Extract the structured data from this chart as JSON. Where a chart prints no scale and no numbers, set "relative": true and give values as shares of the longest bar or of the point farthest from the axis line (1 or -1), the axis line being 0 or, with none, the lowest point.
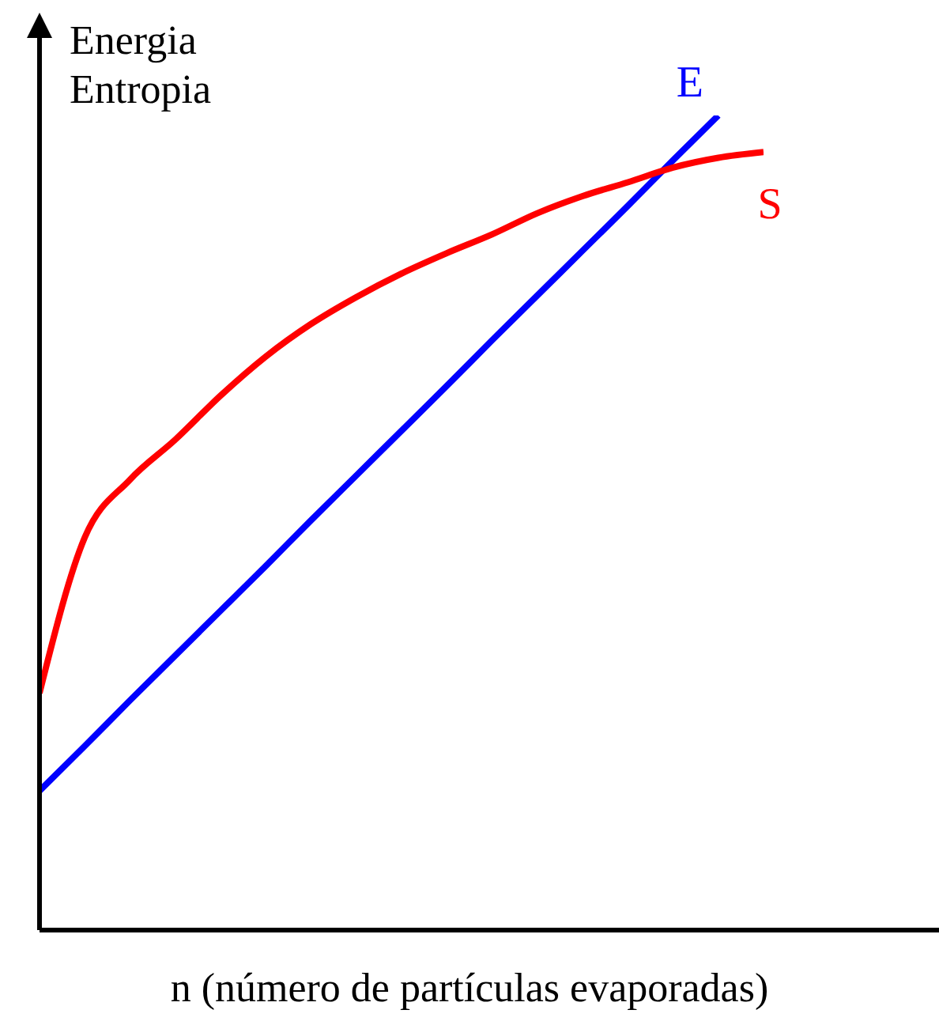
{
  "chart_data": {
    "type": "line",
    "relative": true,
    "xlabel": "n (número de partículas evaporadas)",
    "ylabel": "Energia\nEntropia",
    "categories": [
      null,
      null,
      null,
      null,
      null,
      null,
      null,
      null,
      null,
      null,
      null,
      null,
      null,
      null,
      null,
      null,
      null
    ],
    "series": [
      {
        "name": "E",
        "color": "#0000ff",
        "values": [
          0.171,
          0.226,
          0.282,
          0.337,
          0.392,
          0.447,
          0.503,
          0.558,
          0.613,
          0.668,
          0.724,
          0.779,
          0.834,
          0.889,
          0.945,
          1.0,
          null
        ]
      },
      {
        "name": "S",
        "color": "#ff0000",
        "values": [
          0.291,
          0.482,
          0.553,
          0.602,
          0.656,
          0.704,
          0.744,
          0.777,
          0.806,
          0.831,
          0.854,
          0.88,
          0.901,
          0.918,
          0.936,
          0.948,
          0.955
        ]
      }
    ],
    "marker": "none",
    "line_style": "solid",
    "grid": false,
    "legend": false
  }
}
